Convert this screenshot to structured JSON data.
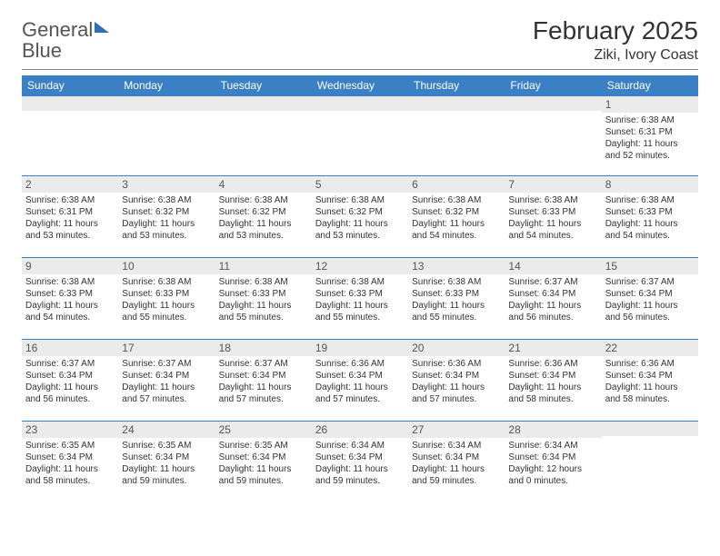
{
  "logo": {
    "word1": "General",
    "word2": "Blue"
  },
  "title": "February 2025",
  "location": "Ziki, Ivory Coast",
  "colors": {
    "header_bg": "#3b7fc4",
    "header_text": "#ffffff",
    "daynum_bg": "#ebebeb",
    "border": "#3b7fc4",
    "logo_blue": "#2f6fb3"
  },
  "weekdays": [
    "Sunday",
    "Monday",
    "Tuesday",
    "Wednesday",
    "Thursday",
    "Friday",
    "Saturday"
  ],
  "weeks": [
    [
      {
        "n": "",
        "sr": "",
        "ss": "",
        "dl": ""
      },
      {
        "n": "",
        "sr": "",
        "ss": "",
        "dl": ""
      },
      {
        "n": "",
        "sr": "",
        "ss": "",
        "dl": ""
      },
      {
        "n": "",
        "sr": "",
        "ss": "",
        "dl": ""
      },
      {
        "n": "",
        "sr": "",
        "ss": "",
        "dl": ""
      },
      {
        "n": "",
        "sr": "",
        "ss": "",
        "dl": ""
      },
      {
        "n": "1",
        "sr": "Sunrise: 6:38 AM",
        "ss": "Sunset: 6:31 PM",
        "dl": "Daylight: 11 hours and 52 minutes."
      }
    ],
    [
      {
        "n": "2",
        "sr": "Sunrise: 6:38 AM",
        "ss": "Sunset: 6:31 PM",
        "dl": "Daylight: 11 hours and 53 minutes."
      },
      {
        "n": "3",
        "sr": "Sunrise: 6:38 AM",
        "ss": "Sunset: 6:32 PM",
        "dl": "Daylight: 11 hours and 53 minutes."
      },
      {
        "n": "4",
        "sr": "Sunrise: 6:38 AM",
        "ss": "Sunset: 6:32 PM",
        "dl": "Daylight: 11 hours and 53 minutes."
      },
      {
        "n": "5",
        "sr": "Sunrise: 6:38 AM",
        "ss": "Sunset: 6:32 PM",
        "dl": "Daylight: 11 hours and 53 minutes."
      },
      {
        "n": "6",
        "sr": "Sunrise: 6:38 AM",
        "ss": "Sunset: 6:32 PM",
        "dl": "Daylight: 11 hours and 54 minutes."
      },
      {
        "n": "7",
        "sr": "Sunrise: 6:38 AM",
        "ss": "Sunset: 6:33 PM",
        "dl": "Daylight: 11 hours and 54 minutes."
      },
      {
        "n": "8",
        "sr": "Sunrise: 6:38 AM",
        "ss": "Sunset: 6:33 PM",
        "dl": "Daylight: 11 hours and 54 minutes."
      }
    ],
    [
      {
        "n": "9",
        "sr": "Sunrise: 6:38 AM",
        "ss": "Sunset: 6:33 PM",
        "dl": "Daylight: 11 hours and 54 minutes."
      },
      {
        "n": "10",
        "sr": "Sunrise: 6:38 AM",
        "ss": "Sunset: 6:33 PM",
        "dl": "Daylight: 11 hours and 55 minutes."
      },
      {
        "n": "11",
        "sr": "Sunrise: 6:38 AM",
        "ss": "Sunset: 6:33 PM",
        "dl": "Daylight: 11 hours and 55 minutes."
      },
      {
        "n": "12",
        "sr": "Sunrise: 6:38 AM",
        "ss": "Sunset: 6:33 PM",
        "dl": "Daylight: 11 hours and 55 minutes."
      },
      {
        "n": "13",
        "sr": "Sunrise: 6:38 AM",
        "ss": "Sunset: 6:33 PM",
        "dl": "Daylight: 11 hours and 55 minutes."
      },
      {
        "n": "14",
        "sr": "Sunrise: 6:37 AM",
        "ss": "Sunset: 6:34 PM",
        "dl": "Daylight: 11 hours and 56 minutes."
      },
      {
        "n": "15",
        "sr": "Sunrise: 6:37 AM",
        "ss": "Sunset: 6:34 PM",
        "dl": "Daylight: 11 hours and 56 minutes."
      }
    ],
    [
      {
        "n": "16",
        "sr": "Sunrise: 6:37 AM",
        "ss": "Sunset: 6:34 PM",
        "dl": "Daylight: 11 hours and 56 minutes."
      },
      {
        "n": "17",
        "sr": "Sunrise: 6:37 AM",
        "ss": "Sunset: 6:34 PM",
        "dl": "Daylight: 11 hours and 57 minutes."
      },
      {
        "n": "18",
        "sr": "Sunrise: 6:37 AM",
        "ss": "Sunset: 6:34 PM",
        "dl": "Daylight: 11 hours and 57 minutes."
      },
      {
        "n": "19",
        "sr": "Sunrise: 6:36 AM",
        "ss": "Sunset: 6:34 PM",
        "dl": "Daylight: 11 hours and 57 minutes."
      },
      {
        "n": "20",
        "sr": "Sunrise: 6:36 AM",
        "ss": "Sunset: 6:34 PM",
        "dl": "Daylight: 11 hours and 57 minutes."
      },
      {
        "n": "21",
        "sr": "Sunrise: 6:36 AM",
        "ss": "Sunset: 6:34 PM",
        "dl": "Daylight: 11 hours and 58 minutes."
      },
      {
        "n": "22",
        "sr": "Sunrise: 6:36 AM",
        "ss": "Sunset: 6:34 PM",
        "dl": "Daylight: 11 hours and 58 minutes."
      }
    ],
    [
      {
        "n": "23",
        "sr": "Sunrise: 6:35 AM",
        "ss": "Sunset: 6:34 PM",
        "dl": "Daylight: 11 hours and 58 minutes."
      },
      {
        "n": "24",
        "sr": "Sunrise: 6:35 AM",
        "ss": "Sunset: 6:34 PM",
        "dl": "Daylight: 11 hours and 59 minutes."
      },
      {
        "n": "25",
        "sr": "Sunrise: 6:35 AM",
        "ss": "Sunset: 6:34 PM",
        "dl": "Daylight: 11 hours and 59 minutes."
      },
      {
        "n": "26",
        "sr": "Sunrise: 6:34 AM",
        "ss": "Sunset: 6:34 PM",
        "dl": "Daylight: 11 hours and 59 minutes."
      },
      {
        "n": "27",
        "sr": "Sunrise: 6:34 AM",
        "ss": "Sunset: 6:34 PM",
        "dl": "Daylight: 11 hours and 59 minutes."
      },
      {
        "n": "28",
        "sr": "Sunrise: 6:34 AM",
        "ss": "Sunset: 6:34 PM",
        "dl": "Daylight: 12 hours and 0 minutes."
      },
      {
        "n": "",
        "sr": "",
        "ss": "",
        "dl": ""
      }
    ]
  ]
}
